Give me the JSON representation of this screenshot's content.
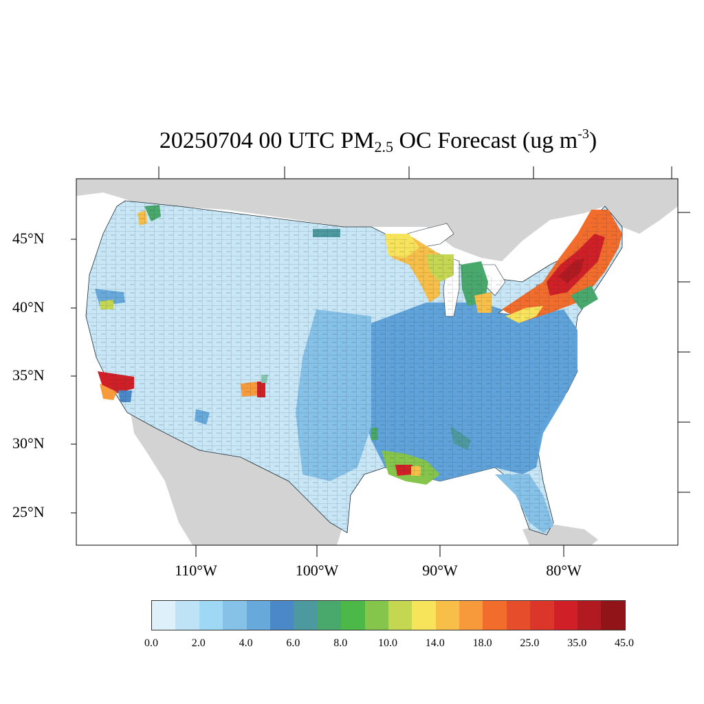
{
  "title": {
    "date_time": "20250704 00 UTC PM",
    "subscript": "2.5",
    "middle": " OC Forecast (ug m",
    "superscript": "-3",
    "close": ")"
  },
  "lat_labels": [
    "45°N",
    "40°N",
    "35°N",
    "30°N",
    "25°N"
  ],
  "lon_labels": [
    "110°W",
    "100°W",
    "90°W",
    "80°W"
  ],
  "colorbar": {
    "colors": [
      "#def1fb",
      "#bfe3f6",
      "#9ed8f4",
      "#86c1e8",
      "#68a9dc",
      "#4a88c8",
      "#4c9aa0",
      "#49a86b",
      "#4cb847",
      "#86c54b",
      "#c5d650",
      "#f8e45a",
      "#f7be48",
      "#f69a3c",
      "#f26c2c",
      "#e64d2a",
      "#dc3529",
      "#d01f26",
      "#b21a21",
      "#911418"
    ],
    "labels": [
      "0.0",
      "2.0",
      "4.0",
      "6.0",
      "8.0",
      "10.0",
      "14.0",
      "18.0",
      "25.0",
      "35.0",
      "45.0"
    ]
  }
}
